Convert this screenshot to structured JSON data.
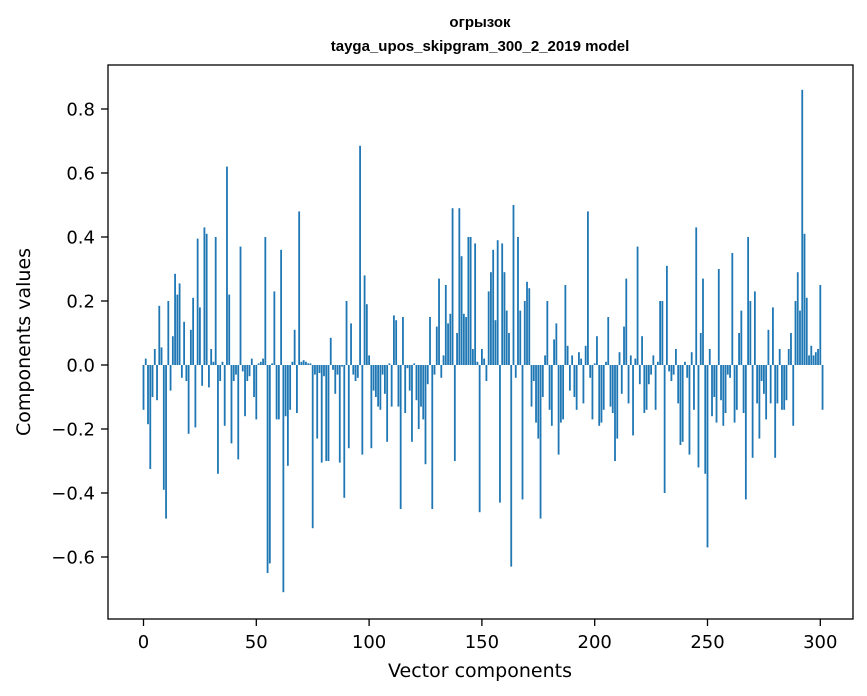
{
  "chart_data": {
    "type": "bar",
    "title": "огрызок",
    "subtitle": "tayga_upos_skipgram_300_2_2019 model",
    "xlabel": "Vector components",
    "ylabel": "Components values",
    "xlim": [
      -15,
      315
    ],
    "ylim": [
      -0.8,
      0.95
    ],
    "x_ticks": [
      0,
      50,
      100,
      150,
      200,
      250,
      300
    ],
    "y_ticks": [
      -0.6,
      -0.4,
      -0.2,
      0.0,
      0.2,
      0.4,
      0.6,
      0.8
    ],
    "x_tick_labels": [
      "0",
      "50",
      "100",
      "150",
      "200",
      "250",
      "300"
    ],
    "y_tick_labels": [
      "−0.6",
      "−0.4",
      "−0.2",
      "0.0",
      "0.2",
      "0.4",
      "0.6",
      "0.8"
    ],
    "bar_color": "#1f77b4",
    "values": [
      -0.14,
      0.02,
      -0.185,
      -0.325,
      -0.1,
      0.05,
      -0.11,
      0.185,
      0.055,
      -0.39,
      -0.48,
      0.2,
      -0.08,
      0.09,
      0.285,
      0.22,
      0.255,
      -0.04,
      0.135,
      -0.05,
      -0.215,
      0.11,
      0.21,
      -0.195,
      0.395,
      0.18,
      -0.065,
      0.43,
      0.41,
      -0.07,
      0.05,
      0.01,
      0.4,
      -0.34,
      -0.05,
      0.01,
      -0.19,
      0.62,
      0.22,
      -0.245,
      -0.05,
      -0.03,
      -0.295,
      0.37,
      -0.02,
      -0.16,
      -0.05,
      -0.035,
      0.02,
      -0.1,
      -0.17,
      0.005,
      0.01,
      0.02,
      0.4,
      -0.65,
      -0.62,
      0.005,
      0.23,
      -0.17,
      -0.17,
      0.36,
      -0.71,
      -0.16,
      -0.315,
      -0.14,
      0.01,
      0.11,
      -0.15,
      0.48,
      0.01,
      0.015,
      0.01,
      0.005,
      0.005,
      -0.51,
      -0.03,
      -0.23,
      -0.025,
      -0.305,
      -0.035,
      -0.3,
      -0.3,
      0.085,
      -0.015,
      -0.09,
      -0.03,
      -0.305,
      -0.005,
      -0.415,
      0.2,
      -0.26,
      0.13,
      -0.03,
      -0.05,
      -0.04,
      0.685,
      -0.28,
      0.28,
      0.19,
      0.03,
      -0.26,
      -0.08,
      -0.1,
      -0.13,
      -0.14,
      -0.03,
      -0.09,
      -0.24,
      0.005,
      -0.13,
      0.155,
      0.14,
      -0.13,
      -0.45,
      0.15,
      -0.15,
      -0.01,
      -0.08,
      -0.24,
      0.005,
      -0.11,
      -0.2,
      -0.13,
      -0.17,
      -0.31,
      -0.06,
      0.15,
      -0.45,
      -0.03,
      0.12,
      0.27,
      -0.04,
      0.03,
      0.25,
      0.13,
      0.16,
      0.49,
      -0.3,
      0.1,
      0.49,
      0.34,
      0.16,
      0.15,
      0.4,
      0.4,
      0.05,
      0.38,
      0.01,
      -0.46,
      0.05,
      0.02,
      -0.05,
      0.23,
      0.29,
      0.36,
      0.14,
      0.39,
      -0.43,
      0.38,
      0.29,
      0.17,
      0.1,
      -0.63,
      0.5,
      -0.04,
      0.4,
      0.17,
      -0.42,
      0.2,
      0.26,
      0.24,
      -0.13,
      -0.05,
      -0.18,
      -0.23,
      -0.48,
      -0.1,
      0.03,
      0.2,
      -0.14,
      -0.19,
      0.08,
      0.13,
      -0.28,
      -0.18,
      -0.17,
      0.25,
      0.06,
      -0.08,
      0.03,
      -0.1,
      -0.14,
      0.04,
      0.02,
      -0.12,
      0.06,
      0.48,
      -0.04,
      -0.17,
      0.005,
      0.09,
      -0.19,
      -0.18,
      -0.14,
      0.01,
      0.15,
      -0.13,
      -0.15,
      -0.3,
      -0.23,
      0.04,
      -0.09,
      0.12,
      0.27,
      -0.12,
      0.03,
      -0.22,
      0.02,
      0.37,
      -0.06,
      0.09,
      -0.15,
      -0.14,
      -0.06,
      -0.03,
      0.03,
      -0.14,
      0.01,
      0.2,
      0.2,
      -0.4,
      0.31,
      -0.02,
      -0.05,
      -0.03,
      0.05,
      -0.12,
      -0.25,
      -0.24,
      0.01,
      -0.04,
      -0.28,
      0.04,
      -0.14,
      0.43,
      -0.32,
      0.1,
      0.27,
      -0.34,
      -0.57,
      0.05,
      -0.16,
      -0.1,
      -0.18,
      0.3,
      -0.11,
      -0.19,
      -0.15,
      -0.03,
      -0.04,
      0.35,
      -0.18,
      -0.14,
      0.1,
      0.17,
      -0.15,
      -0.42,
      0.4,
      0.2,
      -0.29,
      0.23,
      -0.12,
      -0.23,
      -0.05,
      -0.09,
      -0.17,
      0.11,
      -0.12,
      0.18,
      -0.29,
      -0.12,
      0.05,
      -0.14,
      -0.14,
      -0.11,
      0.05,
      0.1,
      -0.19,
      0.2,
      0.29,
      0.17,
      0.86,
      0.41,
      0.21,
      0.03,
      0.06,
      0.03,
      0.04,
      0.05,
      0.25,
      -0.14
    ]
  }
}
